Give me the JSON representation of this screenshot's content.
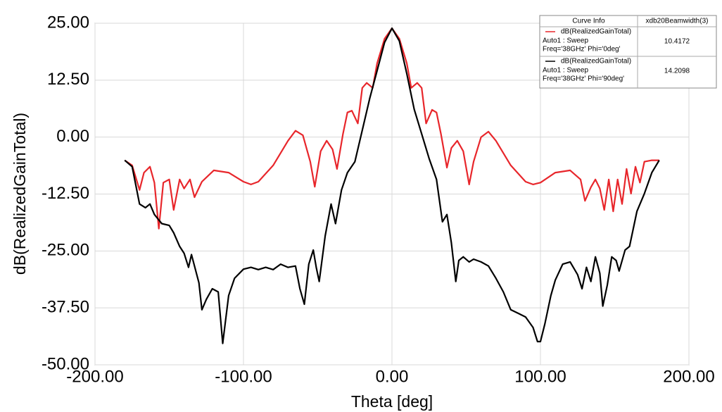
{
  "chart_data": {
    "type": "line",
    "xlabel": "Theta [deg]",
    "ylabel": "dB(RealizedGainTotal)",
    "xlim": [
      -200,
      200
    ],
    "ylim": [
      -50,
      25
    ],
    "xticks": [
      {
        "value": -200,
        "label": "-200.00"
      },
      {
        "value": -100,
        "label": "-100.00"
      },
      {
        "value": 0,
        "label": "0.00"
      },
      {
        "value": 100,
        "label": "100.00"
      },
      {
        "value": 200,
        "label": "200.00"
      }
    ],
    "yticks": [
      {
        "value": -50,
        "label": "-50.00"
      },
      {
        "value": -37.5,
        "label": "-37.50"
      },
      {
        "value": -25,
        "label": "-25.00"
      },
      {
        "value": -12.5,
        "label": "-12.50"
      },
      {
        "value": 0,
        "label": "0.00"
      },
      {
        "value": 12.5,
        "label": "12.50"
      },
      {
        "value": 25,
        "label": "25.00"
      }
    ],
    "grid": true,
    "legend_header": [
      "Curve Info",
      "xdb20Beamwidth(3)"
    ],
    "series": [
      {
        "name": "dB(RealizedGainTotal)",
        "context": [
          "Auto1 : Sweep",
          "Freq='38GHz' Phi='0deg'"
        ],
        "beamwidth": 10.4172,
        "color": "#e8262b",
        "x": [
          -180,
          -175,
          -170,
          -167,
          -163,
          -160,
          -157,
          -154,
          -150,
          -147,
          -143,
          -140,
          -136,
          -133,
          -128,
          -120,
          -110,
          -100,
          -95,
          -90,
          -80,
          -70,
          -65,
          -60,
          -55,
          -52,
          -48,
          -44,
          -40,
          -37,
          -33,
          -30,
          -27,
          -23,
          -20,
          -17,
          -13,
          -10,
          -5,
          0,
          5,
          10,
          13,
          17,
          20,
          23,
          27,
          30,
          33,
          37,
          40,
          44,
          48,
          52,
          55,
          60,
          65,
          70,
          80,
          90,
          95,
          100,
          110,
          120,
          127,
          130,
          134,
          137,
          140,
          143,
          146,
          149,
          152,
          155,
          158,
          161,
          164,
          167,
          170,
          175,
          180
        ],
        "values": [
          -5.1,
          -6.2,
          -11.6,
          -7.8,
          -6.5,
          -10,
          -20.1,
          -10,
          -9.3,
          -16,
          -9.3,
          -11.3,
          -9.3,
          -13.2,
          -9.8,
          -7.3,
          -7.8,
          -9.8,
          -10.4,
          -9.8,
          -6.2,
          -0.8,
          1.4,
          0.4,
          -5.4,
          -10.9,
          -3.1,
          -0.8,
          -2.7,
          -7,
          0.7,
          5.4,
          5.8,
          3,
          10.8,
          11.9,
          10.8,
          16.2,
          21.6,
          23.9,
          21.6,
          16.2,
          10.8,
          11.9,
          10.8,
          3,
          6,
          5.4,
          0.7,
          -6.7,
          -2.4,
          -0.8,
          -3.1,
          -10.4,
          -5.4,
          0,
          1.2,
          -0.8,
          -6.2,
          -9.8,
          -10.4,
          -10,
          -7.8,
          -7.3,
          -9.3,
          -14,
          -11,
          -9.3,
          -11.3,
          -16,
          -9.3,
          -16.3,
          -9.3,
          -14.7,
          -7,
          -12.4,
          -6.5,
          -10,
          -5.4,
          -5.1,
          -5.1
        ]
      },
      {
        "name": "dB(RealizedGainTotal)",
        "context": [
          "Auto1 : Sweep",
          "Freq='38GHz' Phi='90deg'"
        ],
        "beamwidth": 14.2098,
        "color": "#000000",
        "x": [
          -180,
          -175,
          -170,
          -166,
          -163,
          -160,
          -155,
          -150,
          -147,
          -143,
          -140,
          -137,
          -135,
          -130,
          -128,
          -125,
          -121,
          -117,
          -114,
          -110,
          -106,
          -100,
          -95,
          -90,
          -85,
          -80,
          -75,
          -70,
          -65,
          -62,
          -59,
          -56,
          -53,
          -51,
          -49,
          -45,
          -41,
          -38,
          -34,
          -30,
          -25,
          -20,
          -15,
          -10,
          -5,
          0,
          5,
          10,
          15,
          20,
          25,
          30,
          34,
          37,
          40,
          43,
          45,
          48,
          52,
          55,
          60,
          65,
          70,
          75,
          80,
          85,
          90,
          95,
          98,
          100,
          103,
          107,
          110,
          115,
          120,
          125,
          128,
          131,
          134,
          137,
          140,
          142,
          145,
          148,
          151,
          153,
          157,
          160,
          165,
          170,
          175,
          180
        ],
        "values": [
          -5.1,
          -6.5,
          -14.7,
          -15.5,
          -14.7,
          -17,
          -19,
          -19.4,
          -21,
          -24,
          -25.5,
          -28.6,
          -25.8,
          -32,
          -37.9,
          -35.6,
          -33.3,
          -34,
          -45.3,
          -34.8,
          -31,
          -29,
          -28.6,
          -29.1,
          -28.6,
          -29.1,
          -27.9,
          -28.6,
          -28.3,
          -33.3,
          -36.7,
          -27.9,
          -24.8,
          -28.6,
          -31.7,
          -21.7,
          -14.7,
          -19,
          -11.6,
          -7.8,
          -5.4,
          1.5,
          8.5,
          14.6,
          20.8,
          23.9,
          21.1,
          13.9,
          6.1,
          0.7,
          -4.7,
          -9.3,
          -18.6,
          -17,
          -23.2,
          -31.7,
          -27.1,
          -26.3,
          -27.4,
          -26.8,
          -27.4,
          -28.3,
          -31,
          -34,
          -37.9,
          -38.7,
          -39.5,
          -41.8,
          -44.9,
          -44.9,
          -41,
          -34.8,
          -31.4,
          -27.9,
          -27.4,
          -30.2,
          -33.3,
          -28.6,
          -31.7,
          -26.3,
          -29.9,
          -37.1,
          -32.5,
          -26.3,
          -27.1,
          -29.4,
          -24.8,
          -24,
          -16.3,
          -12.4,
          -7.8,
          -5.1
        ]
      }
    ]
  }
}
